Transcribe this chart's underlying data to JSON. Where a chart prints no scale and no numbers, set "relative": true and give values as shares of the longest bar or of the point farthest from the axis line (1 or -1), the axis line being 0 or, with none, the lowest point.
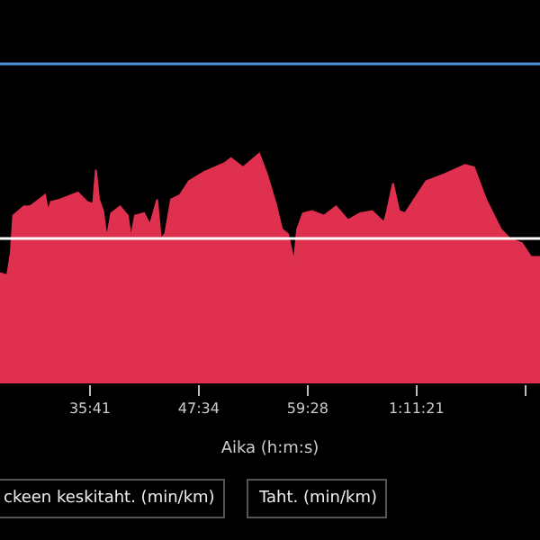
{
  "chart_data": {
    "type": "area",
    "relative": true,
    "xlabel": "Aika (h:m:s)",
    "x": [
      25.85,
      26.64,
      27.03,
      27.29,
      28.47,
      29.13,
      30.12,
      30.77,
      31.1,
      31.42,
      32.4,
      34.37,
      35.35,
      36.02,
      36.33,
      36.67,
      37.12,
      37.51,
      37.99,
      38.97,
      39.82,
      40.15,
      40.6,
      41.59,
      42.24,
      43.02,
      43.42,
      43.89,
      44.54,
      45.52,
      46.5,
      48.14,
      50.44,
      51.09,
      52.4,
      54.17,
      55.02,
      56.0,
      56.67,
      57.32,
      57.97,
      58.31,
      58.95,
      59.94,
      61.26,
      62.57,
      63.87,
      65.19,
      66.51,
      67.81,
      68.14,
      68.79,
      69.46,
      70.11,
      71.09,
      72.41,
      74.38,
      76.66,
      77.64,
      78.96,
      80.59,
      81.57,
      82.89,
      83.88,
      84.85
    ],
    "series": [
      {
        "color": "#e0304f",
        "values": [
          0.48,
          0.47,
          0.57,
          0.73,
          0.77,
          0.77,
          0.8,
          0.82,
          0.75,
          0.79,
          0.8,
          0.83,
          0.79,
          0.78,
          0.93,
          0.8,
          0.75,
          0.63,
          0.74,
          0.77,
          0.73,
          0.63,
          0.73,
          0.74,
          0.69,
          0.8,
          0.63,
          0.65,
          0.8,
          0.82,
          0.88,
          0.92,
          0.96,
          0.98,
          0.94,
          1,
          0.91,
          0.78,
          0.67,
          0.65,
          0.53,
          0.67,
          0.74,
          0.75,
          0.73,
          0.77,
          0.71,
          0.74,
          0.75,
          0.7,
          0.75,
          0.87,
          0.75,
          0.74,
          0.8,
          0.88,
          0.91,
          0.95,
          0.94,
          0.8,
          0.67,
          0.63,
          0.61,
          0.55,
          0.55
        ]
      }
    ],
    "xlim": [
      25.85,
      84.85
    ],
    "xticks": [
      {
        "value": 35.68,
        "label": "35:41"
      },
      {
        "value": 47.57,
        "label": "47:34"
      },
      {
        "value": 59.47,
        "label": "59:28"
      },
      {
        "value": 71.35,
        "label": "1:11:21"
      },
      {
        "value": 83.25,
        "label": null
      }
    ],
    "ref_lines": [
      {
        "axis": "y",
        "value": 1.39,
        "color": "#4a90d9"
      },
      {
        "axis": "y",
        "value": 0.63,
        "color": "#ffffff"
      }
    ],
    "annotations": [
      "ckeen keskitaht. (min/km)",
      "Taht. (min/km)"
    ],
    "grid": false
  }
}
